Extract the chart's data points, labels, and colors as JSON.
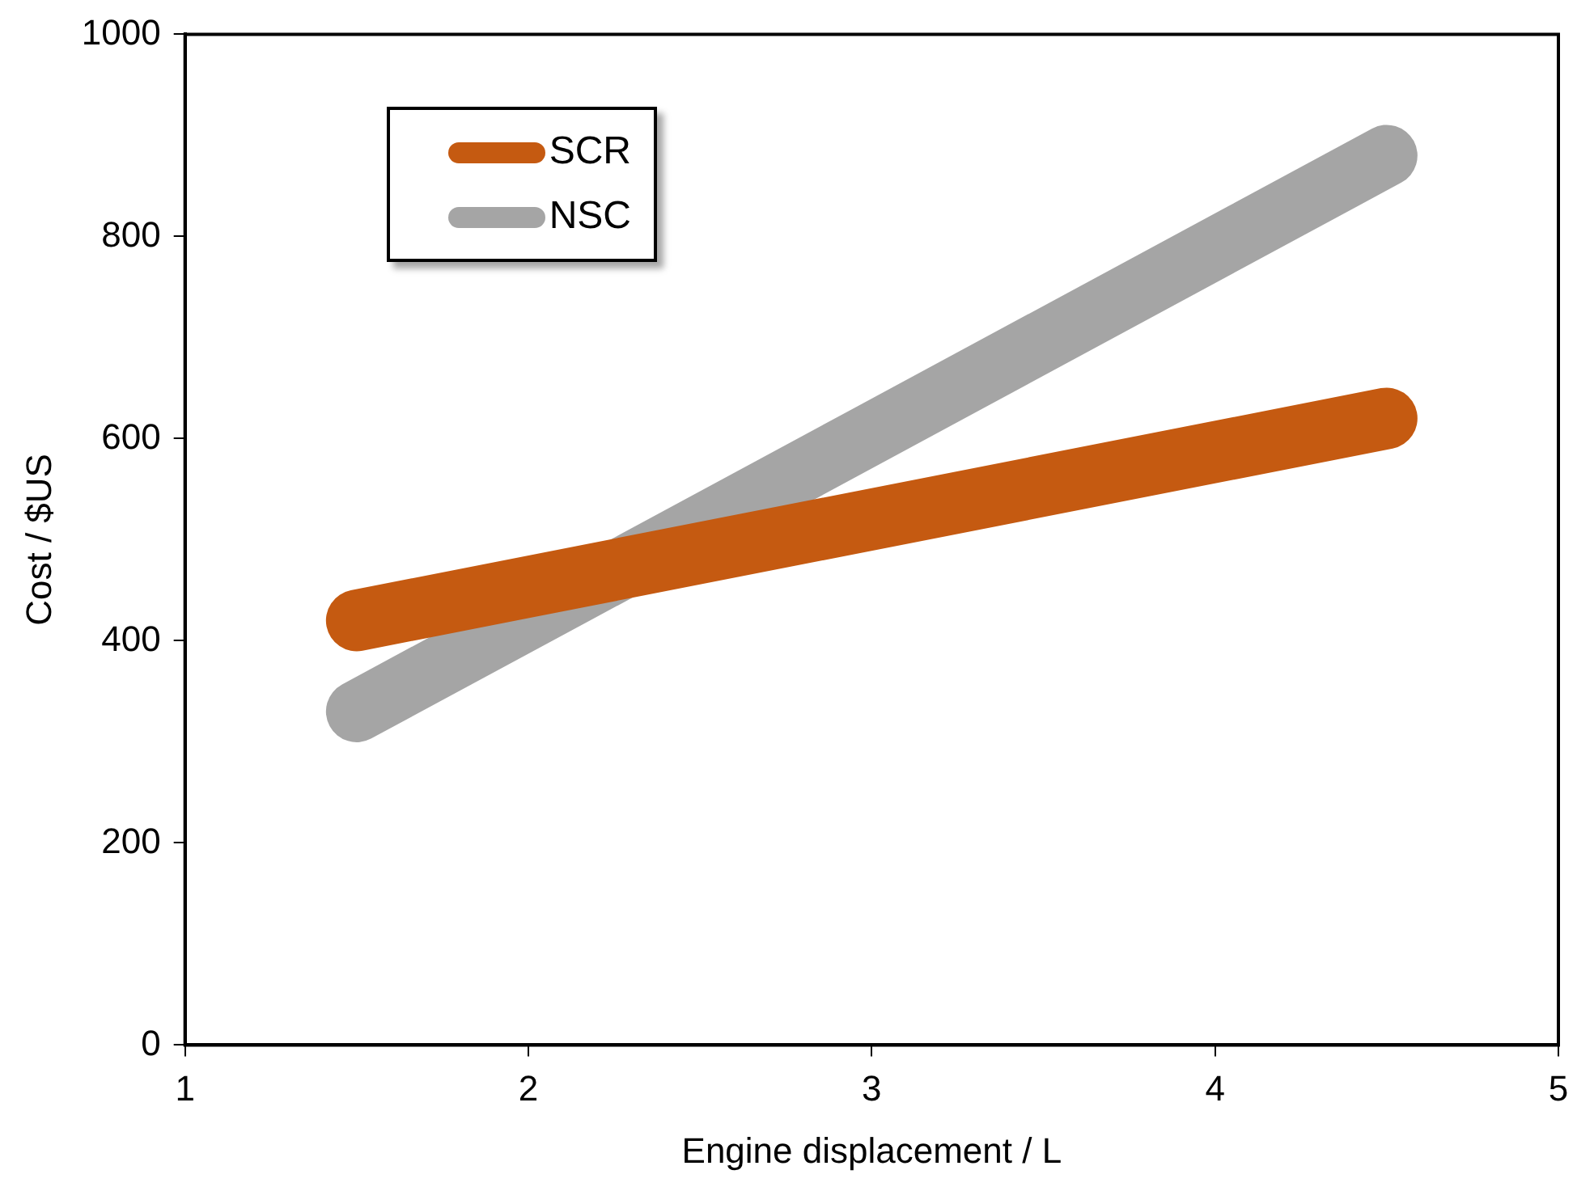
{
  "chart_data": {
    "type": "line",
    "xlabel": "Engine displacement / L",
    "ylabel": "Cost / $US",
    "x": [
      1.5,
      4.5
    ],
    "series": [
      {
        "name": "SCR",
        "color": "#c55a11",
        "values": [
          420,
          620
        ]
      },
      {
        "name": "NSC",
        "color": "#a5a5a5",
        "values": [
          330,
          880
        ]
      }
    ],
    "xlim": [
      1,
      5
    ],
    "xticks": [
      1,
      2,
      3,
      4,
      5
    ],
    "ylim": [
      0,
      1000
    ],
    "yticks": [
      0,
      200,
      400,
      600,
      800,
      1000
    ],
    "grid": false,
    "legend": "top left",
    "marker": "none",
    "line_style": "solid"
  }
}
